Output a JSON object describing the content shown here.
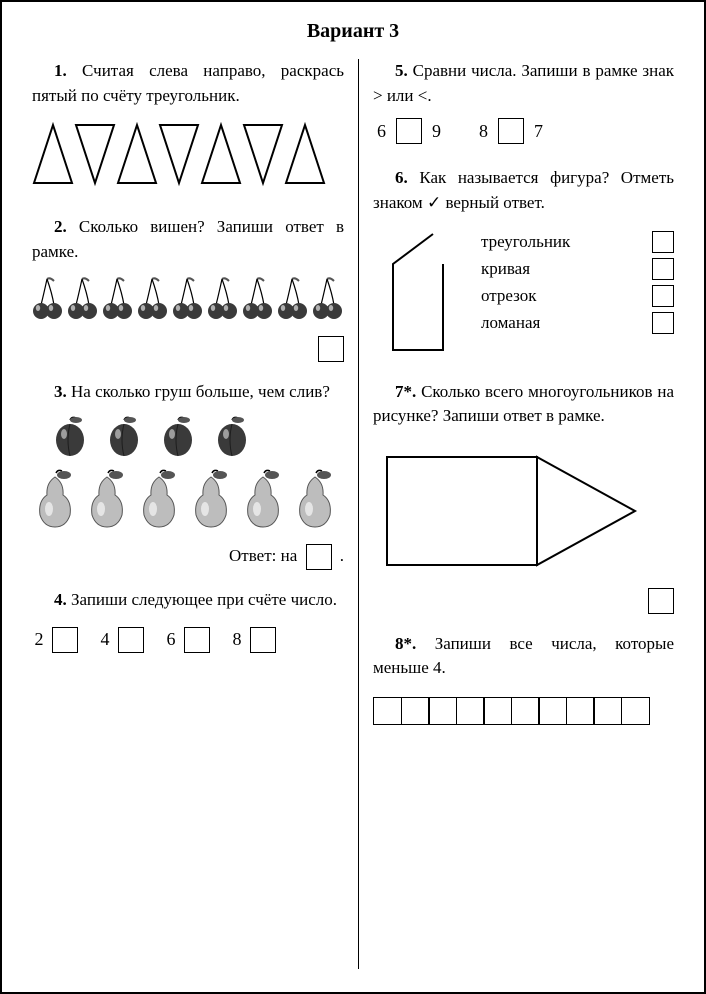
{
  "title": "Вариант 3",
  "colors": {
    "fg": "#000000",
    "bg": "#ffffff",
    "fruit_dark": "#3a3a3a",
    "fruit_mid": "#6a6a6a",
    "pear": "#bdbdbd",
    "leaf": "#555555"
  },
  "q1": {
    "num": "1.",
    "text": "Считая слева направо, раскрась пятый по счёту тре­угольник.",
    "triangle_count": 7,
    "orientation": [
      "up",
      "down",
      "up",
      "down",
      "up",
      "down",
      "up"
    ],
    "tri_w": 38,
    "tri_h": 60,
    "stroke": 2
  },
  "q2": {
    "num": "2.",
    "text": "Сколько вишен? Запи­ши ответ в рамке.",
    "cherry_count": 9
  },
  "q3": {
    "num": "3.",
    "text": "На сколько груш боль­ше, чем слив?",
    "plum_count": 4,
    "pear_count": 6,
    "answer_label": "Ответ: на",
    "dot": "."
  },
  "q4": {
    "num": "4.",
    "text": "Запиши следующее при счёте число.",
    "numbers": [
      "2",
      "4",
      "6",
      "8"
    ]
  },
  "q5": {
    "num": "5.",
    "text": "Сравни числа. Запиши в рамке знак > или <.",
    "pairs": [
      [
        "6",
        "9"
      ],
      [
        "8",
        "7"
      ]
    ]
  },
  "q6": {
    "num": "6.",
    "text_a": "Как называется фигура? Отметь знаком",
    "check": "✓",
    "text_b": "верный ответ.",
    "options": [
      "треугольник",
      "кривая",
      "отрезок",
      "ломаная"
    ]
  },
  "q7": {
    "num": "7*.",
    "text": "Сколько всего много­угольников на рисунке? За­пиши ответ в рамке."
  },
  "q8": {
    "num": "8*.",
    "text": "Запиши все числа, ко­торые меньше 4.",
    "cells": 10
  }
}
